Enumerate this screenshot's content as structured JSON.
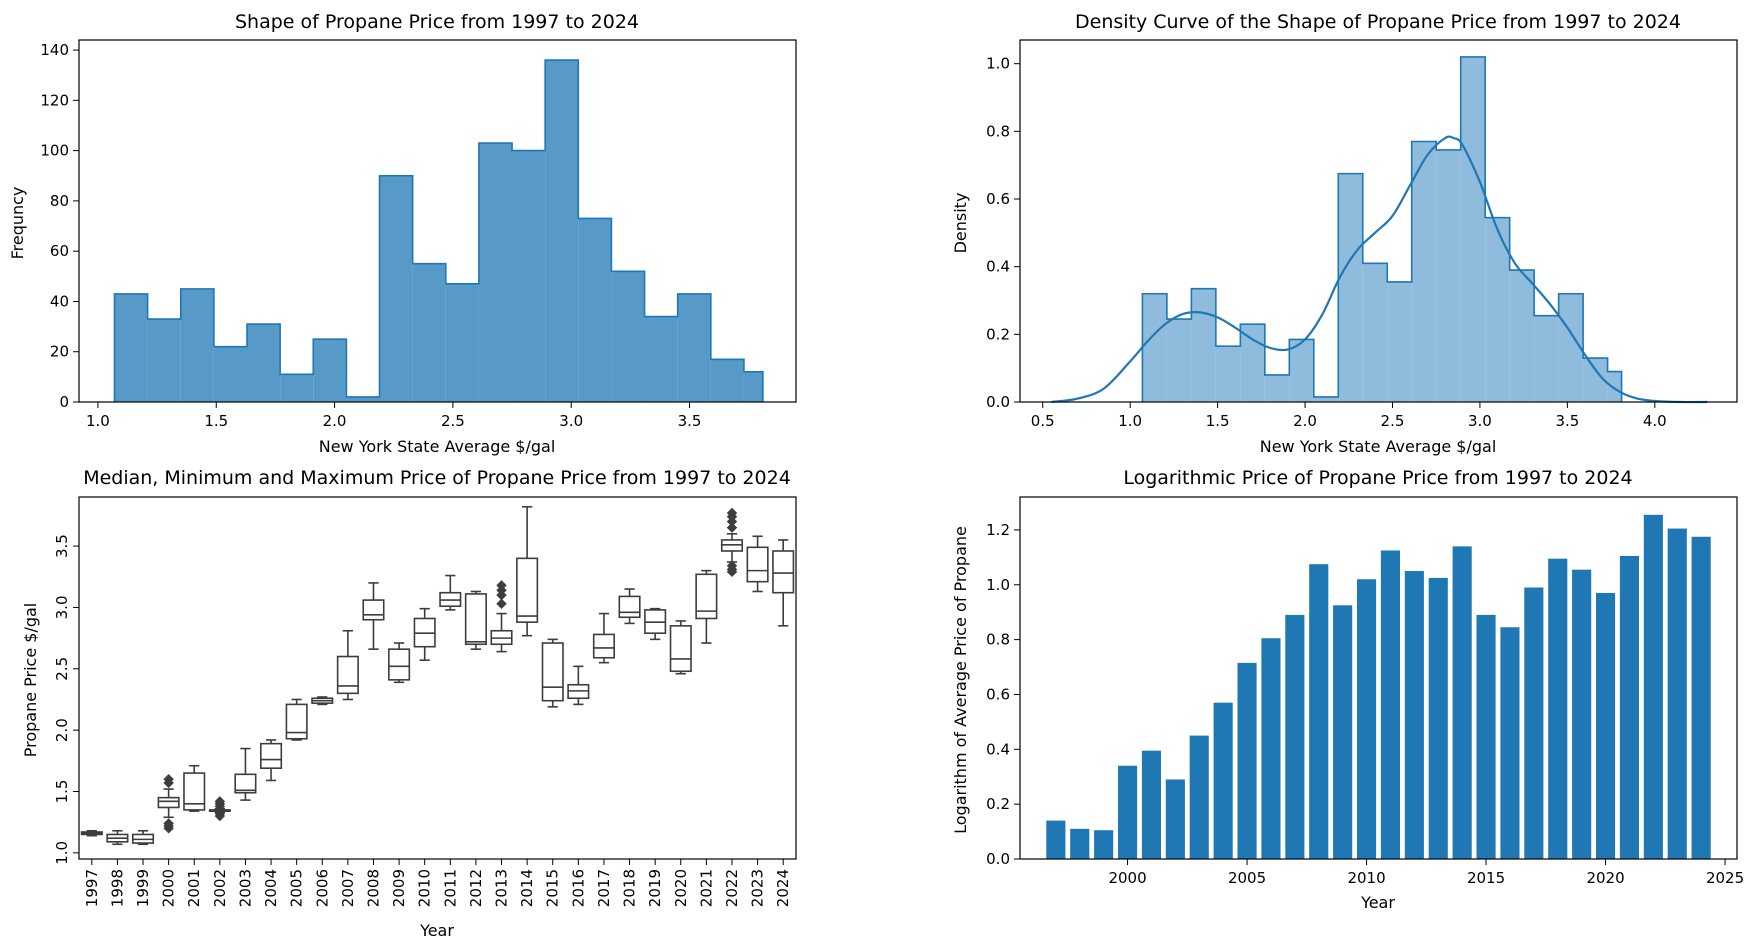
{
  "colors": {
    "hist_fill": "#5799c7",
    "hist_edge": "#1f77b4",
    "density_fill": "#8fbbdc",
    "kde_line": "#1f77b4",
    "bar": "#1f77b4",
    "box_line": "#3d3d3d"
  },
  "chart_data": [
    {
      "type": "bar",
      "subtype": "histogram-step",
      "title": "Shape of Propane Price from 1997 to 2024",
      "xlabel": "New York State Average $/gal",
      "ylabel": "Frequncy",
      "xlim": [
        0.92,
        3.95
      ],
      "ylim": [
        0,
        144
      ],
      "xticks": [
        1.0,
        1.5,
        2.0,
        2.5,
        3.0,
        3.5
      ],
      "xtick_labels": [
        "1.0",
        "1.5",
        "2.0",
        "2.5",
        "3.0",
        "3.5"
      ],
      "yticks": [
        0,
        20,
        40,
        60,
        80,
        100,
        120,
        140
      ],
      "ytick_labels": [
        "0",
        "20",
        "40",
        "60",
        "80",
        "100",
        "120",
        "140"
      ],
      "bin_edges": [
        1.07,
        1.21,
        1.35,
        1.49,
        1.63,
        1.77,
        1.91,
        2.05,
        2.19,
        2.33,
        2.47,
        2.61,
        2.75,
        2.89,
        3.03,
        3.17,
        3.31,
        3.45,
        3.59,
        3.73,
        3.81
      ],
      "values": [
        43,
        33,
        45,
        22,
        31,
        11,
        25,
        2,
        90,
        55,
        47,
        103,
        100,
        136,
        73,
        52,
        34,
        43,
        17,
        12
      ],
      "grid": false
    },
    {
      "type": "bar",
      "subtype": "histogram-density-with-kde",
      "title": "Density Curve of the Shape of Propane Price from 1997 to 2024",
      "xlabel": "New York State Average $/gal",
      "ylabel": "Density",
      "xlim": [
        0.37,
        4.47
      ],
      "ylim": [
        0,
        1.07
      ],
      "xticks": [
        0.5,
        1.0,
        1.5,
        2.0,
        2.5,
        3.0,
        3.5,
        4.0
      ],
      "xtick_labels": [
        "0.5",
        "1.0",
        "1.5",
        "2.0",
        "2.5",
        "3.0",
        "3.5",
        "4.0"
      ],
      "yticks": [
        0.0,
        0.2,
        0.4,
        0.6,
        0.8,
        1.0
      ],
      "ytick_labels": [
        "0.0",
        "0.2",
        "0.4",
        "0.6",
        "0.8",
        "1.0"
      ],
      "bin_edges": [
        1.07,
        1.21,
        1.35,
        1.49,
        1.63,
        1.77,
        1.91,
        2.05,
        2.19,
        2.33,
        2.47,
        2.61,
        2.75,
        2.89,
        3.03,
        3.17,
        3.31,
        3.45,
        3.59,
        3.73,
        3.81
      ],
      "values": [
        0.32,
        0.245,
        0.335,
        0.165,
        0.23,
        0.08,
        0.185,
        0.015,
        0.675,
        0.41,
        0.355,
        0.77,
        0.745,
        1.02,
        0.545,
        0.39,
        0.255,
        0.32,
        0.13,
        0.09
      ],
      "kde": {
        "x": [
          0.55,
          0.7,
          0.85,
          1.0,
          1.1,
          1.2,
          1.3,
          1.4,
          1.5,
          1.6,
          1.7,
          1.8,
          1.9,
          2.0,
          2.1,
          2.2,
          2.3,
          2.4,
          2.5,
          2.6,
          2.7,
          2.8,
          2.85,
          2.9,
          3.0,
          3.1,
          3.2,
          3.3,
          3.4,
          3.5,
          3.6,
          3.7,
          3.8,
          3.9,
          4.0,
          4.15,
          4.3
        ],
        "y": [
          0.0,
          0.01,
          0.04,
          0.12,
          0.18,
          0.23,
          0.26,
          0.265,
          0.25,
          0.22,
          0.185,
          0.16,
          0.155,
          0.185,
          0.26,
          0.37,
          0.45,
          0.5,
          0.55,
          0.64,
          0.73,
          0.78,
          0.78,
          0.76,
          0.65,
          0.51,
          0.41,
          0.35,
          0.29,
          0.22,
          0.14,
          0.07,
          0.03,
          0.01,
          0.003,
          0.0,
          0.0
        ]
      },
      "grid": false
    },
    {
      "type": "box",
      "title": "Median, Minimum and Maximum Price of Propane Price from 1997 to 2024",
      "xlabel": "Year",
      "ylabel": "Propane  Price $/gal",
      "ylim": [
        0.95,
        3.9
      ],
      "yticks": [
        1.0,
        1.5,
        2.0,
        2.5,
        3.0,
        3.5
      ],
      "ytick_labels": [
        "1.0",
        "1.5",
        "2.0",
        "2.5",
        "3.0",
        "3.5"
      ],
      "categories": [
        "1997",
        "1998",
        "1999",
        "2000",
        "2001",
        "2002",
        "2003",
        "2004",
        "2005",
        "2006",
        "2007",
        "2008",
        "2009",
        "2010",
        "2011",
        "2012",
        "2013",
        "2014",
        "2015",
        "2016",
        "2017",
        "2018",
        "2019",
        "2020",
        "2021",
        "2022",
        "2023",
        "2024"
      ],
      "boxes": [
        {
          "min": 1.14,
          "q1": 1.15,
          "median": 1.16,
          "q3": 1.17,
          "max": 1.18,
          "outliers": []
        },
        {
          "min": 1.07,
          "q1": 1.09,
          "median": 1.12,
          "q3": 1.15,
          "max": 1.18,
          "outliers": []
        },
        {
          "min": 1.07,
          "q1": 1.08,
          "median": 1.11,
          "q3": 1.15,
          "max": 1.18,
          "outliers": []
        },
        {
          "min": 1.29,
          "q1": 1.37,
          "median": 1.42,
          "q3": 1.45,
          "max": 1.52,
          "outliers": [
            1.2,
            1.22,
            1.24,
            1.57,
            1.6
          ]
        },
        {
          "min": 1.34,
          "q1": 1.35,
          "median": 1.4,
          "q3": 1.65,
          "max": 1.71,
          "outliers": []
        },
        {
          "min": 1.33,
          "q1": 1.34,
          "median": 1.34,
          "q3": 1.35,
          "max": 1.36,
          "outliers": [
            1.3,
            1.32,
            1.38,
            1.4,
            1.42
          ]
        },
        {
          "min": 1.43,
          "q1": 1.49,
          "median": 1.51,
          "q3": 1.64,
          "max": 1.85,
          "outliers": []
        },
        {
          "min": 1.59,
          "q1": 1.69,
          "median": 1.76,
          "q3": 1.89,
          "max": 1.92,
          "outliers": []
        },
        {
          "min": 1.92,
          "q1": 1.93,
          "median": 1.98,
          "q3": 2.21,
          "max": 2.25,
          "outliers": []
        },
        {
          "min": 2.21,
          "q1": 2.22,
          "median": 2.24,
          "q3": 2.26,
          "max": 2.27,
          "outliers": []
        },
        {
          "min": 2.25,
          "q1": 2.3,
          "median": 2.36,
          "q3": 2.6,
          "max": 2.81,
          "outliers": []
        },
        {
          "min": 2.66,
          "q1": 2.9,
          "median": 2.94,
          "q3": 3.06,
          "max": 3.2,
          "outliers": []
        },
        {
          "min": 2.39,
          "q1": 2.41,
          "median": 2.52,
          "q3": 2.66,
          "max": 2.71,
          "outliers": []
        },
        {
          "min": 2.57,
          "q1": 2.68,
          "median": 2.79,
          "q3": 2.91,
          "max": 2.99,
          "outliers": []
        },
        {
          "min": 2.98,
          "q1": 3.01,
          "median": 3.06,
          "q3": 3.12,
          "max": 3.26,
          "outliers": []
        },
        {
          "min": 2.66,
          "q1": 2.7,
          "median": 2.72,
          "q3": 3.11,
          "max": 3.13,
          "outliers": []
        },
        {
          "min": 2.64,
          "q1": 2.7,
          "median": 2.75,
          "q3": 2.81,
          "max": 2.95,
          "outliers": [
            3.03,
            3.1,
            3.14,
            3.18
          ]
        },
        {
          "min": 2.77,
          "q1": 2.88,
          "median": 2.93,
          "q3": 3.4,
          "max": 3.82,
          "outliers": []
        },
        {
          "min": 2.19,
          "q1": 2.24,
          "median": 2.35,
          "q3": 2.71,
          "max": 2.74,
          "outliers": []
        },
        {
          "min": 2.21,
          "q1": 2.26,
          "median": 2.32,
          "q3": 2.37,
          "max": 2.52,
          "outliers": []
        },
        {
          "min": 2.55,
          "q1": 2.59,
          "median": 2.67,
          "q3": 2.78,
          "max": 2.95,
          "outliers": []
        },
        {
          "min": 2.87,
          "q1": 2.92,
          "median": 2.96,
          "q3": 3.09,
          "max": 3.15,
          "outliers": []
        },
        {
          "min": 2.74,
          "q1": 2.79,
          "median": 2.88,
          "q3": 2.98,
          "max": 2.99,
          "outliers": []
        },
        {
          "min": 2.46,
          "q1": 2.48,
          "median": 2.58,
          "q3": 2.85,
          "max": 2.89,
          "outliers": []
        },
        {
          "min": 2.71,
          "q1": 2.91,
          "median": 2.97,
          "q3": 3.27,
          "max": 3.3,
          "outliers": []
        },
        {
          "min": 3.37,
          "q1": 3.46,
          "median": 3.51,
          "q3": 3.55,
          "max": 3.6,
          "outliers": [
            3.29,
            3.31,
            3.34,
            3.65,
            3.7,
            3.74,
            3.77
          ]
        },
        {
          "min": 3.13,
          "q1": 3.21,
          "median": 3.3,
          "q3": 3.49,
          "max": 3.58,
          "outliers": []
        },
        {
          "min": 2.85,
          "q1": 3.12,
          "median": 3.28,
          "q3": 3.46,
          "max": 3.55,
          "outliers": []
        }
      ],
      "grid": false
    },
    {
      "type": "bar",
      "title": "Logarithmic Price of Propane Price from 1997 to 2024",
      "xlabel": "Year",
      "ylabel": "Logarithm of Average Price of Propane",
      "xlim": [
        1995.5,
        2025.5
      ],
      "ylim": [
        0,
        1.32
      ],
      "xticks": [
        2000,
        2005,
        2010,
        2015,
        2020,
        2025
      ],
      "xtick_labels": [
        "2000",
        "2005",
        "2010",
        "2015",
        "2020",
        "2025"
      ],
      "yticks": [
        0.0,
        0.2,
        0.4,
        0.6,
        0.8,
        1.0,
        1.2
      ],
      "ytick_labels": [
        "0.0",
        "0.2",
        "0.4",
        "0.6",
        "0.8",
        "1.0",
        "1.2"
      ],
      "categories": [
        1997,
        1998,
        1999,
        2000,
        2001,
        2002,
        2003,
        2004,
        2005,
        2006,
        2007,
        2008,
        2009,
        2010,
        2011,
        2012,
        2013,
        2014,
        2015,
        2016,
        2017,
        2018,
        2019,
        2020,
        2021,
        2022,
        2023,
        2024
      ],
      "values": [
        0.14,
        0.11,
        0.105,
        0.34,
        0.395,
        0.29,
        0.45,
        0.57,
        0.715,
        0.805,
        0.89,
        1.075,
        0.925,
        1.02,
        1.125,
        1.05,
        1.025,
        1.14,
        0.89,
        0.845,
        0.99,
        1.095,
        1.055,
        0.97,
        1.105,
        1.255,
        1.205,
        1.175
      ],
      "grid": false
    }
  ]
}
